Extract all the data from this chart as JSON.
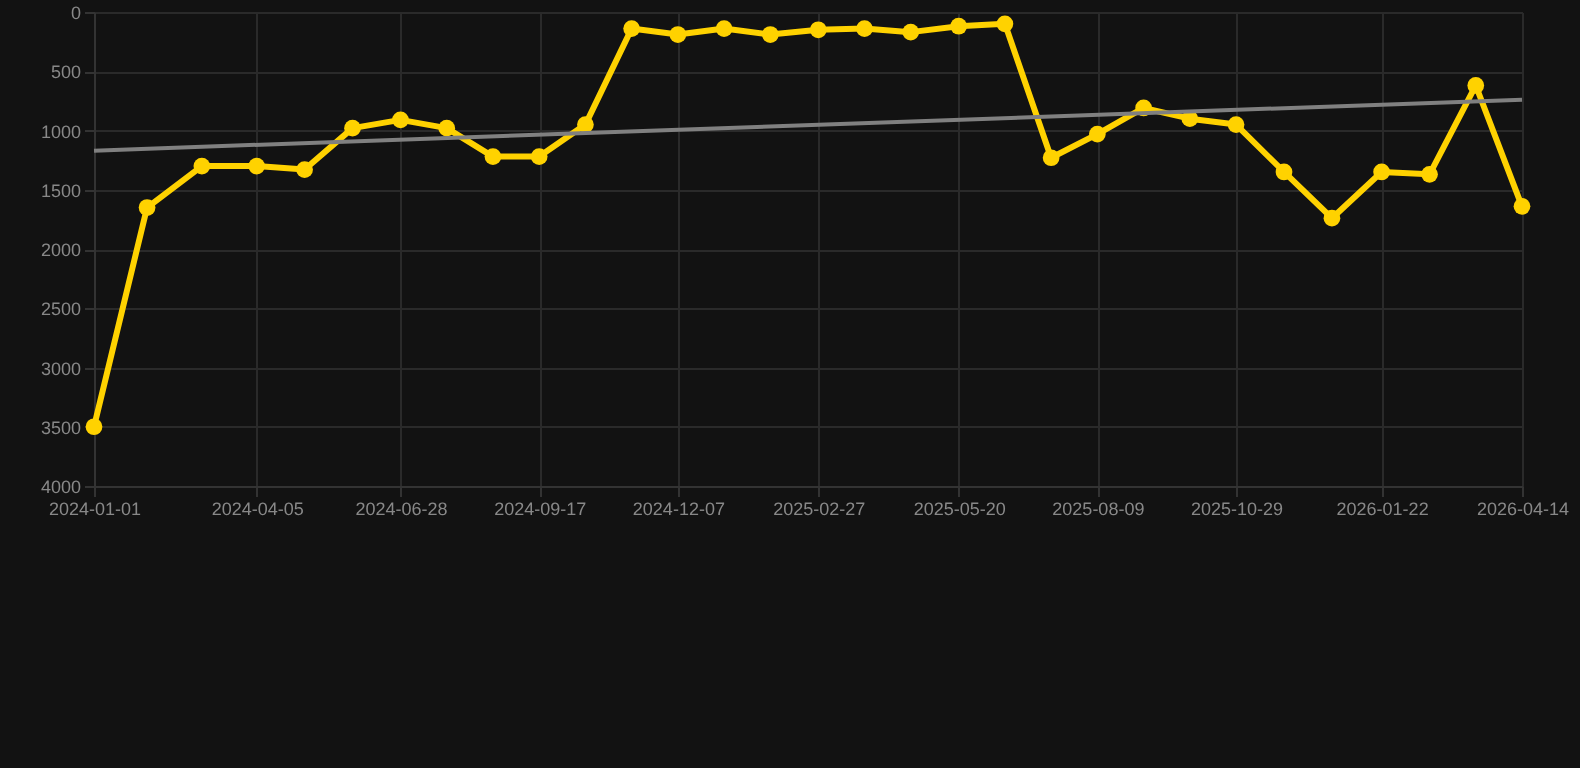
{
  "chart_data": {
    "type": "line",
    "x": [
      "2024-01-01",
      "2024-02-01",
      "2024-03-04",
      "2024-04-05",
      "2024-05-03",
      "2024-05-31",
      "2024-06-28",
      "2024-07-25",
      "2024-08-21",
      "2024-09-17",
      "2024-10-14",
      "2024-11-10",
      "2024-12-07",
      "2025-01-03",
      "2025-01-30",
      "2025-02-27",
      "2025-03-26",
      "2025-04-22",
      "2025-05-20",
      "2025-06-16",
      "2025-07-13",
      "2025-08-09",
      "2025-09-05",
      "2025-10-02",
      "2025-10-29",
      "2025-11-26",
      "2025-12-24",
      "2026-01-22",
      "2026-02-19",
      "2026-03-18",
      "2026-04-14"
    ],
    "series": [
      {
        "color": "#ffd200",
        "marker": "circle",
        "values": [
          3500,
          1650,
          1300,
          1300,
          1330,
          980,
          910,
          980,
          1220,
          1220,
          950,
          140,
          190,
          140,
          190,
          150,
          140,
          170,
          120,
          100,
          1230,
          1030,
          810,
          900,
          950,
          1350,
          1740,
          1350,
          1370,
          620,
          1640
        ]
      },
      {
        "type": "line",
        "color": "#808080",
        "marker": "none",
        "x": [
          "2024-01-01",
          "2026-04-14"
        ],
        "values": [
          1170,
          740
        ]
      }
    ],
    "ylim": [
      4000,
      0
    ],
    "yticks": [
      0,
      500,
      1000,
      1500,
      2000,
      2500,
      3000,
      3500,
      4000
    ],
    "xlim": [
      "2024-01-01",
      "2026-04-14"
    ],
    "xticks": [
      "2024-01-01",
      "2024-04-05",
      "2024-06-28",
      "2024-09-17",
      "2024-12-07",
      "2025-02-27",
      "2025-05-20",
      "2025-08-09",
      "2025-10-29",
      "2026-01-22",
      "2026-04-14"
    ],
    "grid": true
  }
}
